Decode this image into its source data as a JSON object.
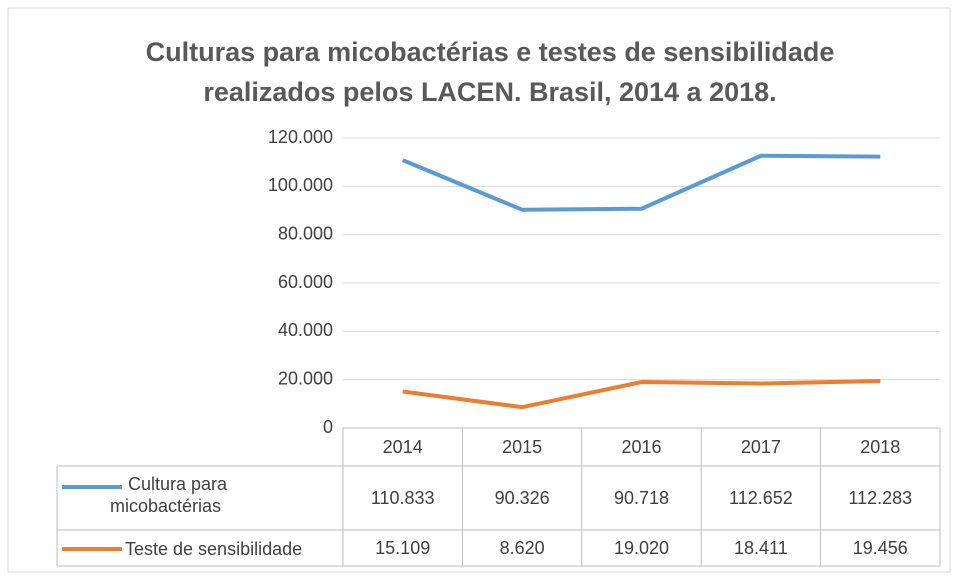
{
  "chart_data": {
    "type": "line",
    "title": "Culturas para micobactérias e testes de sensibilidade realizados pelos LACEN. Brasil, 2014 a 2018.",
    "categories": [
      "2014",
      "2015",
      "2016",
      "2017",
      "2018"
    ],
    "series": [
      {
        "name": "Cultura para micobactérias",
        "color": "#5b9bd5",
        "values": [
          110833,
          90326,
          90718,
          112652,
          112283
        ],
        "value_labels": [
          "110.833",
          "90.326",
          "90.718",
          "112.652",
          "112.283"
        ]
      },
      {
        "name": "Teste de sensibilidade",
        "color": "#ed7d31",
        "values": [
          15109,
          8620,
          19020,
          18411,
          19456
        ],
        "value_labels": [
          "15.109",
          "8.620",
          "19.020",
          "18.411",
          "19.456"
        ]
      }
    ],
    "ylim": [
      0,
      120000
    ],
    "yticks": [
      0,
      {
        "value": 20000,
        "label": "20.000"
      },
      {
        "value": 40000,
        "label": "40.000"
      },
      {
        "value": 60000,
        "label": "60.000"
      },
      {
        "value": 80000,
        "label": "80.000"
      },
      {
        "value": 100000,
        "label": "100.000"
      },
      {
        "value": 120000,
        "label": "120.000"
      }
    ],
    "grid": true
  }
}
